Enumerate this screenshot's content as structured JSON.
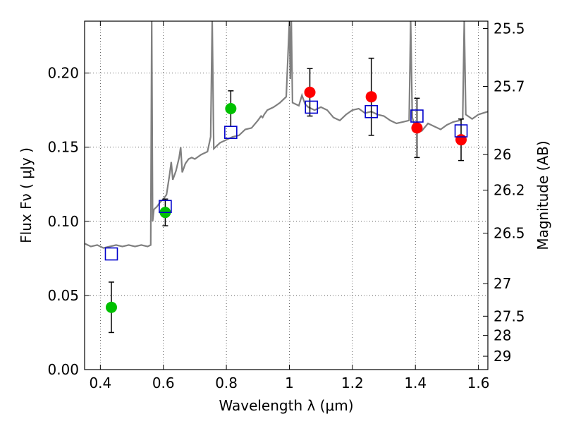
{
  "chart_data": {
    "type": "scatter",
    "title": "",
    "xlabel": "Wavelength  λ (μm)",
    "ylabel": "Flux  Fν  ( μJy )",
    "ylabel_right": "Magnitude (AB)",
    "xlim": [
      0.35,
      1.63
    ],
    "ylim": [
      0.0,
      0.235
    ],
    "grid": true,
    "x_ticks": [
      0.4,
      0.6,
      0.8,
      1.0,
      1.2,
      1.4,
      1.6
    ],
    "x_tick_labels": [
      "0.4",
      "0.6",
      "0.8",
      "1",
      "1.2",
      "1.4",
      "1.6"
    ],
    "y_ticks": [
      0.0,
      0.05,
      0.1,
      0.15,
      0.2
    ],
    "y_tick_labels": [
      "0.00",
      "0.05",
      "0.10",
      "0.15",
      "0.20"
    ],
    "right_ticks": [
      {
        "label": "25.5",
        "flux": 0.23
      },
      {
        "label": "25.7",
        "flux": 0.191
      },
      {
        "label": "26",
        "flux": 0.145
      },
      {
        "label": "26.2",
        "flux": 0.121
      },
      {
        "label": "26.5",
        "flux": 0.092
      },
      {
        "label": "27",
        "flux": 0.058
      },
      {
        "label": "27.5",
        "flux": 0.036
      },
      {
        "label": "28",
        "flux": 0.023
      },
      {
        "label": "29",
        "flux": 0.009
      }
    ],
    "colors": {
      "spectrum": "#808080",
      "green_points": "#00c000",
      "red_points": "#ff0000",
      "model_squares": "#0000cc",
      "errorbars": "#000000"
    },
    "series": [
      {
        "marker": "green-circle",
        "points": [
          {
            "x": 0.435,
            "y": 0.042,
            "err": 0.017
          },
          {
            "x": 0.606,
            "y": 0.106,
            "err": 0.009
          },
          {
            "x": 0.814,
            "y": 0.176,
            "err": 0.012
          }
        ]
      },
      {
        "marker": "red-circle",
        "points": [
          {
            "x": 1.065,
            "y": 0.187,
            "err": 0.016
          },
          {
            "x": 1.26,
            "y": 0.184,
            "err": 0.026
          },
          {
            "x": 1.405,
            "y": 0.163,
            "err": 0.02
          },
          {
            "x": 1.545,
            "y": 0.155,
            "err": 0.014
          }
        ]
      },
      {
        "marker": "blue-open-square",
        "points": [
          {
            "x": 0.435,
            "y": 0.078
          },
          {
            "x": 0.606,
            "y": 0.11
          },
          {
            "x": 0.814,
            "y": 0.16
          },
          {
            "x": 1.07,
            "y": 0.177
          },
          {
            "x": 1.26,
            "y": 0.174
          },
          {
            "x": 1.405,
            "y": 0.171
          },
          {
            "x": 1.545,
            "y": 0.161
          }
        ]
      },
      {
        "marker": "gray-line",
        "x": [
          0.35,
          0.37,
          0.39,
          0.41,
          0.43,
          0.45,
          0.47,
          0.49,
          0.51,
          0.53,
          0.55,
          0.56,
          0.563,
          0.566,
          0.57,
          0.58,
          0.59,
          0.6,
          0.61,
          0.62,
          0.625,
          0.63,
          0.64,
          0.65,
          0.655,
          0.66,
          0.67,
          0.68,
          0.69,
          0.7,
          0.72,
          0.74,
          0.75,
          0.755,
          0.76,
          0.765,
          0.77,
          0.78,
          0.8,
          0.82,
          0.84,
          0.86,
          0.88,
          0.9,
          0.91,
          0.915,
          0.92,
          0.93,
          0.95,
          0.97,
          0.99,
          1.0,
          1.003,
          1.006,
          1.01,
          1.03,
          1.04,
          1.05,
          1.06,
          1.08,
          1.1,
          1.12,
          1.14,
          1.16,
          1.18,
          1.2,
          1.22,
          1.24,
          1.26,
          1.28,
          1.3,
          1.32,
          1.34,
          1.36,
          1.38,
          1.385,
          1.39,
          1.4,
          1.42,
          1.44,
          1.46,
          1.48,
          1.5,
          1.52,
          1.54,
          1.55,
          1.555,
          1.56,
          1.58,
          1.6,
          1.63
        ],
        "y": [
          0.085,
          0.083,
          0.084,
          0.082,
          0.083,
          0.084,
          0.083,
          0.084,
          0.083,
          0.084,
          0.083,
          0.084,
          0.235,
          0.1,
          0.108,
          0.11,
          0.113,
          0.115,
          0.118,
          0.132,
          0.14,
          0.128,
          0.134,
          0.143,
          0.15,
          0.133,
          0.139,
          0.142,
          0.143,
          0.142,
          0.145,
          0.147,
          0.157,
          0.235,
          0.149,
          0.15,
          0.151,
          0.153,
          0.155,
          0.157,
          0.158,
          0.162,
          0.163,
          0.168,
          0.171,
          0.17,
          0.172,
          0.175,
          0.177,
          0.18,
          0.184,
          0.235,
          0.196,
          0.235,
          0.18,
          0.178,
          0.185,
          0.179,
          0.177,
          0.175,
          0.177,
          0.175,
          0.17,
          0.168,
          0.172,
          0.175,
          0.176,
          0.173,
          0.174,
          0.172,
          0.171,
          0.168,
          0.166,
          0.167,
          0.168,
          0.235,
          0.17,
          0.163,
          0.161,
          0.166,
          0.164,
          0.162,
          0.165,
          0.167,
          0.168,
          0.169,
          0.235,
          0.172,
          0.169,
          0.172,
          0.174
        ]
      }
    ]
  }
}
